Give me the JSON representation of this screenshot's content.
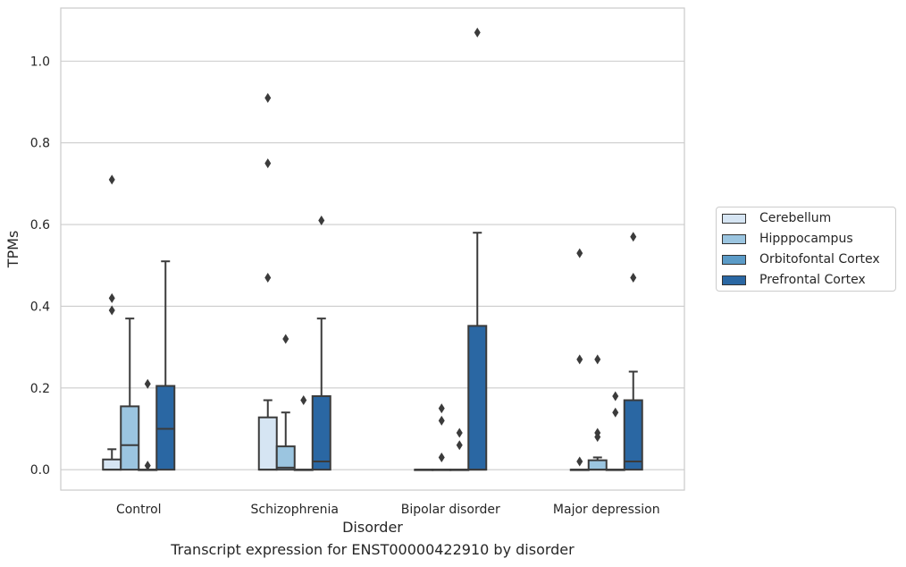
{
  "chart_data": {
    "type": "box",
    "xlabel": "Disorder",
    "ylabel": "TPMs",
    "caption": "Transcript expression for ENST00000422910 by disorder",
    "categories": [
      "Control",
      "Schizophrenia",
      "Bipolar disorder",
      "Major depression"
    ],
    "ylim": [
      -0.05,
      1.13
    ],
    "yticks": [
      0.0,
      0.2,
      0.4,
      0.6,
      0.8,
      1.0
    ],
    "ytick_labels": [
      "0.0",
      "0.2",
      "0.4",
      "0.6",
      "0.8",
      "1.0"
    ],
    "grid": true,
    "legend_position": "right",
    "series": [
      {
        "name": "Cerebellum",
        "color": "#d6e5f3",
        "boxes": [
          {
            "q1": 0.0,
            "median": 0.0,
            "q3": 0.025,
            "whisker_low": 0.0,
            "whisker_high": 0.05,
            "outliers": [
              0.71,
              0.42,
              0.39
            ]
          },
          {
            "q1": 0.0,
            "median": 0.0,
            "q3": 0.128,
            "whisker_low": 0.0,
            "whisker_high": 0.17,
            "outliers": [
              0.91,
              0.75,
              0.47
            ]
          },
          {
            "q1": 0.0,
            "median": 0.0,
            "q3": 0.0,
            "whisker_low": 0.0,
            "whisker_high": 0.0,
            "outliers": []
          },
          {
            "q1": 0.0,
            "median": 0.0,
            "q3": 0.0,
            "whisker_low": 0.0,
            "whisker_high": 0.0,
            "outliers": [
              0.53,
              0.27,
              0.02
            ]
          }
        ]
      },
      {
        "name": "Hipppocampus",
        "color": "#9bc5e0",
        "boxes": [
          {
            "q1": 0.0,
            "median": 0.06,
            "q3": 0.155,
            "whisker_low": 0.0,
            "whisker_high": 0.37,
            "outliers": []
          },
          {
            "q1": 0.0,
            "median": 0.005,
            "q3": 0.057,
            "whisker_low": 0.0,
            "whisker_high": 0.14,
            "outliers": [
              0.32
            ]
          },
          {
            "q1": 0.0,
            "median": 0.0,
            "q3": 0.0,
            "whisker_low": 0.0,
            "whisker_high": 0.0,
            "outliers": [
              0.15,
              0.12,
              0.03
            ]
          },
          {
            "q1": 0.0,
            "median": 0.0,
            "q3": 0.023,
            "whisker_low": 0.0,
            "whisker_high": 0.03,
            "outliers": [
              0.27,
              0.09,
              0.08
            ]
          }
        ]
      },
      {
        "name": "Orbitofontal Cortex",
        "color": "#5b9bc7",
        "boxes": [
          {
            "q1": 0.0,
            "median": 0.0,
            "q3": 0.0,
            "whisker_low": 0.0,
            "whisker_high": 0.0,
            "outliers": [
              0.21,
              0.01
            ]
          },
          {
            "q1": 0.0,
            "median": 0.0,
            "q3": 0.0,
            "whisker_low": 0.0,
            "whisker_high": 0.0,
            "outliers": [
              0.17
            ]
          },
          {
            "q1": 0.0,
            "median": 0.0,
            "q3": 0.0,
            "whisker_low": 0.0,
            "whisker_high": 0.0,
            "outliers": [
              0.09,
              0.06
            ]
          },
          {
            "q1": 0.0,
            "median": 0.0,
            "q3": 0.0,
            "whisker_low": 0.0,
            "whisker_high": 0.0,
            "outliers": [
              0.18,
              0.14
            ]
          }
        ]
      },
      {
        "name": "Prefrontal Cortex",
        "color": "#2a67a3",
        "boxes": [
          {
            "q1": 0.0,
            "median": 0.1,
            "q3": 0.205,
            "whisker_low": 0.0,
            "whisker_high": 0.51,
            "outliers": []
          },
          {
            "q1": 0.0,
            "median": 0.02,
            "q3": 0.18,
            "whisker_low": 0.0,
            "whisker_high": 0.37,
            "outliers": [
              0.61
            ]
          },
          {
            "q1": 0.0,
            "median": 0.0,
            "q3": 0.352,
            "whisker_low": 0.0,
            "whisker_high": 0.58,
            "outliers": [
              1.07
            ]
          },
          {
            "q1": 0.0,
            "median": 0.02,
            "q3": 0.17,
            "whisker_low": 0.0,
            "whisker_high": 0.24,
            "outliers": [
              0.57,
              0.47
            ]
          }
        ]
      }
    ]
  }
}
